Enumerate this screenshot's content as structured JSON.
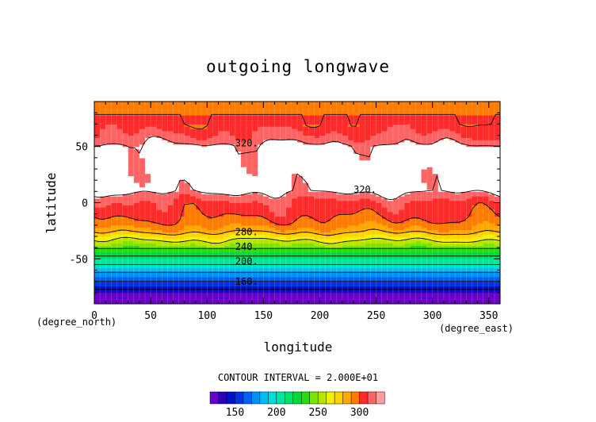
{
  "chart_data": {
    "type": "heatmap",
    "title": "outgoing longwave",
    "xlabel": "longitude",
    "ylabel": "latitude",
    "x_unit": "(degree_east)",
    "y_unit": "(degree_north)",
    "xlim": [
      0,
      360
    ],
    "ylim": [
      -90,
      90
    ],
    "x_ticks": [
      0,
      50,
      100,
      150,
      200,
      250,
      300,
      350
    ],
    "y_ticks": [
      -50,
      0,
      50
    ],
    "contour_interval_text": "CONTOUR INTERVAL = 2.000E+01",
    "contour_labels": [
      "320.",
      "320.",
      "280.",
      "240.",
      "200.",
      "160."
    ],
    "contour_label_positions": [
      {
        "lon": 125,
        "lat": 50
      },
      {
        "lon": 230,
        "lat": 9
      },
      {
        "lon": 125,
        "lat": -29
      },
      {
        "lon": 125,
        "lat": -42
      },
      {
        "lon": 125,
        "lat": -55
      },
      {
        "lon": 125,
        "lat": -73
      }
    ],
    "latitude_profile": [
      {
        "lat": -90,
        "value": 120
      },
      {
        "lat": -80,
        "value": 130
      },
      {
        "lat": -75,
        "value": 148
      },
      {
        "lat": -70,
        "value": 160
      },
      {
        "lat": -65,
        "value": 172
      },
      {
        "lat": -60,
        "value": 185
      },
      {
        "lat": -55,
        "value": 200
      },
      {
        "lat": -50,
        "value": 212
      },
      {
        "lat": -45,
        "value": 228
      },
      {
        "lat": -40,
        "value": 242
      },
      {
        "lat": -35,
        "value": 256
      },
      {
        "lat": -30,
        "value": 270
      },
      {
        "lat": -25,
        "value": 285
      },
      {
        "lat": -18,
        "value": 296
      },
      {
        "lat": -10,
        "value": 303
      },
      {
        "lat": 0,
        "value": 308
      },
      {
        "lat": 8,
        "value": 318
      },
      {
        "lat": 11,
        "value": 325
      },
      {
        "lat": 50,
        "value": 325
      },
      {
        "lat": 53,
        "value": 318
      },
      {
        "lat": 62,
        "value": 310
      },
      {
        "lat": 72,
        "value": 302
      },
      {
        "lat": 85,
        "value": 298
      },
      {
        "lat": 90,
        "value": 296
      }
    ],
    "colorbar": {
      "levels": [
        120,
        130,
        140,
        150,
        160,
        170,
        180,
        190,
        200,
        210,
        220,
        230,
        240,
        250,
        260,
        270,
        280,
        290,
        300,
        310,
        320
      ],
      "colors": [
        "#6a00c8",
        "#2a00b4",
        "#0010c8",
        "#0032e6",
        "#0060f0",
        "#0090f8",
        "#00bcf4",
        "#00dcd8",
        "#00e6a0",
        "#00e06a",
        "#00d83c",
        "#28dc14",
        "#78e600",
        "#b4e600",
        "#f0f000",
        "#ffd200",
        "#ffa800",
        "#ff7c00",
        "#ff2a2a",
        "#ff6464",
        "#ff9c9c"
      ],
      "tick_labels": [
        "150",
        "200",
        "250",
        "300"
      ],
      "tick_values": [
        150,
        200,
        250,
        300
      ]
    },
    "above_top_level_color": "#ffffff",
    "grid": true
  }
}
